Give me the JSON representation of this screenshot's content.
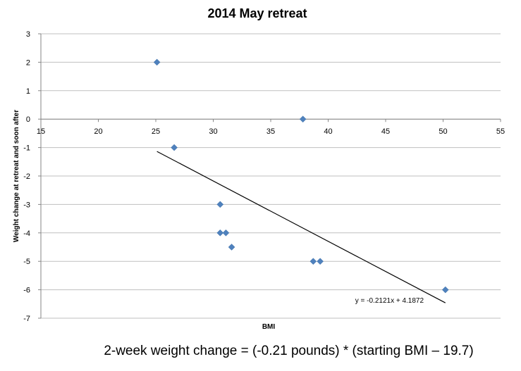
{
  "chart_data": {
    "type": "scatter",
    "title": "2014 May retreat",
    "xlabel": "BMI",
    "ylabel": "Weight change at retreat and soon after",
    "xlim": [
      15,
      55
    ],
    "ylim": [
      -7,
      3
    ],
    "x_ticks": [
      15,
      20,
      25,
      30,
      35,
      40,
      45,
      50,
      55
    ],
    "y_ticks": [
      3,
      2,
      1,
      0,
      -1,
      -2,
      -3,
      -4,
      -5,
      -6,
      -7
    ],
    "grid": "horizontal",
    "marker": "diamond",
    "marker_color": "#4f81bd",
    "points": [
      {
        "x": 25.1,
        "y": 2
      },
      {
        "x": 37.8,
        "y": 0
      },
      {
        "x": 26.6,
        "y": -1
      },
      {
        "x": 30.6,
        "y": -3
      },
      {
        "x": 30.6,
        "y": -4
      },
      {
        "x": 31.1,
        "y": -4
      },
      {
        "x": 31.6,
        "y": -4.5
      },
      {
        "x": 38.7,
        "y": -5
      },
      {
        "x": 39.3,
        "y": -5
      },
      {
        "x": 50.2,
        "y": -6
      }
    ],
    "trendline": {
      "slope": -0.2121,
      "intercept": 4.1872,
      "x_start": 25.1,
      "x_end": 50.2,
      "equation_label": "y = -0.2121x + 4.1872",
      "color": "#000000"
    }
  },
  "caption": "2-week weight change = (-0.21 pounds) * (starting BMI – 19.7)"
}
